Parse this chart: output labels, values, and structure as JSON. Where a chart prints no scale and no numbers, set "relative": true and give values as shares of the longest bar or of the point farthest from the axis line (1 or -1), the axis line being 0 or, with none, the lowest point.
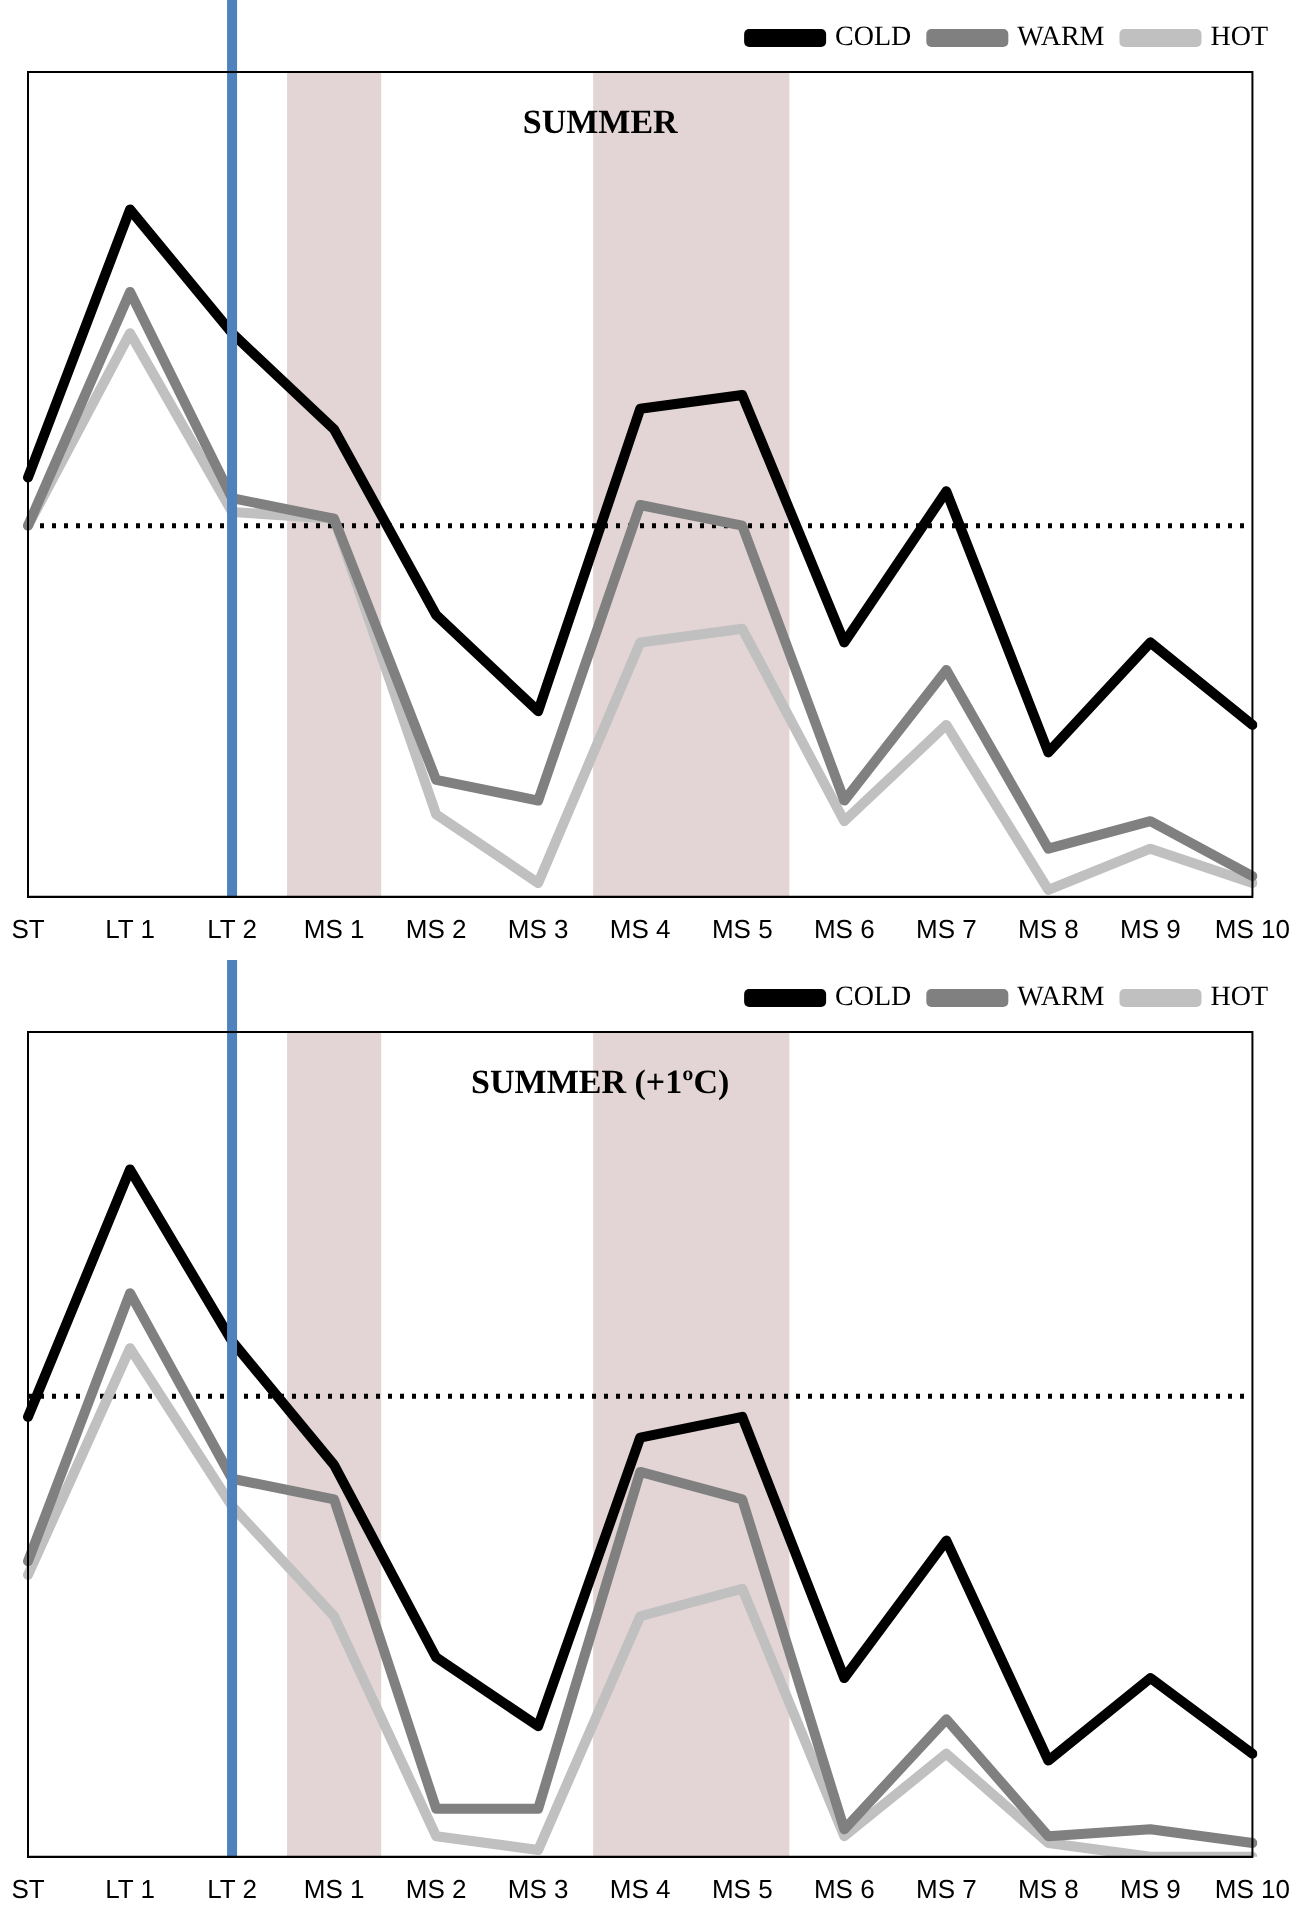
{
  "chart_data": [
    {
      "type": "line",
      "title": "SUMMER",
      "relative": true,
      "legend": "top right",
      "marker": "none",
      "line_style": "solid",
      "grid": false,
      "categories": [
        "ST",
        "LT 1",
        "LT 2",
        "MS 1",
        "MS 2",
        "MS 3",
        "MS 4",
        "MS 5",
        "MS 6",
        "MS 7",
        "MS 8",
        "MS 9",
        "MS 10"
      ],
      "series": [
        {
          "name": "COLD",
          "color": "#000000",
          "values": [
            0.61,
            1,
            0.82,
            0.68,
            0.41,
            0.27,
            0.71,
            0.73,
            0.37,
            0.59,
            0.21,
            0.37,
            0.25
          ]
        },
        {
          "name": "WARM",
          "color": "#808080",
          "values": [
            0.54,
            0.88,
            0.58,
            0.55,
            0.17,
            0.14,
            0.57,
            0.54,
            0.14,
            0.33,
            0.07,
            0.11,
            0.03
          ]
        },
        {
          "name": "HOT",
          "color": "#c0c0c0",
          "values": [
            0.54,
            0.82,
            0.56,
            0.55,
            0.12,
            0.02,
            0.37,
            0.39,
            0.11,
            0.25,
            0.01,
            0.07,
            0.02
          ]
        }
      ],
      "ref_lines": [
        {
          "axis": "y",
          "value": 0.54,
          "line_style": "dotted",
          "color": "#000000"
        },
        {
          "axis": "x",
          "value": "LT 2",
          "color": "#4f81bd",
          "line_style": "solid"
        }
      ],
      "bands": [
        {
          "axis": "x",
          "from": "MS 1",
          "to": "MS 1",
          "color": "#dccaca"
        },
        {
          "axis": "x",
          "from": "MS 4",
          "to": "MS 5",
          "color": "#dccaca"
        }
      ]
    },
    {
      "type": "line",
      "title": "SUMMER (+1ºC)",
      "relative": true,
      "legend": "top right",
      "marker": "none",
      "line_style": "solid",
      "grid": false,
      "categories": [
        "ST",
        "LT 1",
        "LT 2",
        "MS 1",
        "MS 2",
        "MS 3",
        "MS 4",
        "MS 5",
        "MS 6",
        "MS 7",
        "MS 8",
        "MS 9",
        "MS 10"
      ],
      "series": [
        {
          "name": "COLD",
          "color": "#000000",
          "values": [
            0.64,
            1,
            0.75,
            0.57,
            0.29,
            0.19,
            0.61,
            0.64,
            0.26,
            0.46,
            0.14,
            0.26,
            0.15
          ]
        },
        {
          "name": "WARM",
          "color": "#808080",
          "values": [
            0.43,
            0.82,
            0.55,
            0.52,
            0.07,
            0.07,
            0.56,
            0.52,
            0.04,
            0.2,
            0.03,
            0.04,
            0.02
          ]
        },
        {
          "name": "HOT",
          "color": "#c0c0c0",
          "values": [
            0.41,
            0.74,
            0.51,
            0.35,
            0.03,
            0.01,
            0.35,
            0.39,
            0.03,
            0.15,
            0.02,
            0,
            0
          ]
        }
      ],
      "ref_lines": [
        {
          "axis": "y",
          "value": 0.67,
          "line_style": "dotted",
          "color": "#000000"
        },
        {
          "axis": "x",
          "value": "LT 2",
          "color": "#4f81bd",
          "line_style": "solid"
        }
      ],
      "bands": [
        {
          "axis": "x",
          "from": "MS 1",
          "to": "MS 1",
          "color": "#dccaca"
        },
        {
          "axis": "x",
          "from": "MS 4",
          "to": "MS 5",
          "color": "#dccaca"
        }
      ]
    }
  ]
}
